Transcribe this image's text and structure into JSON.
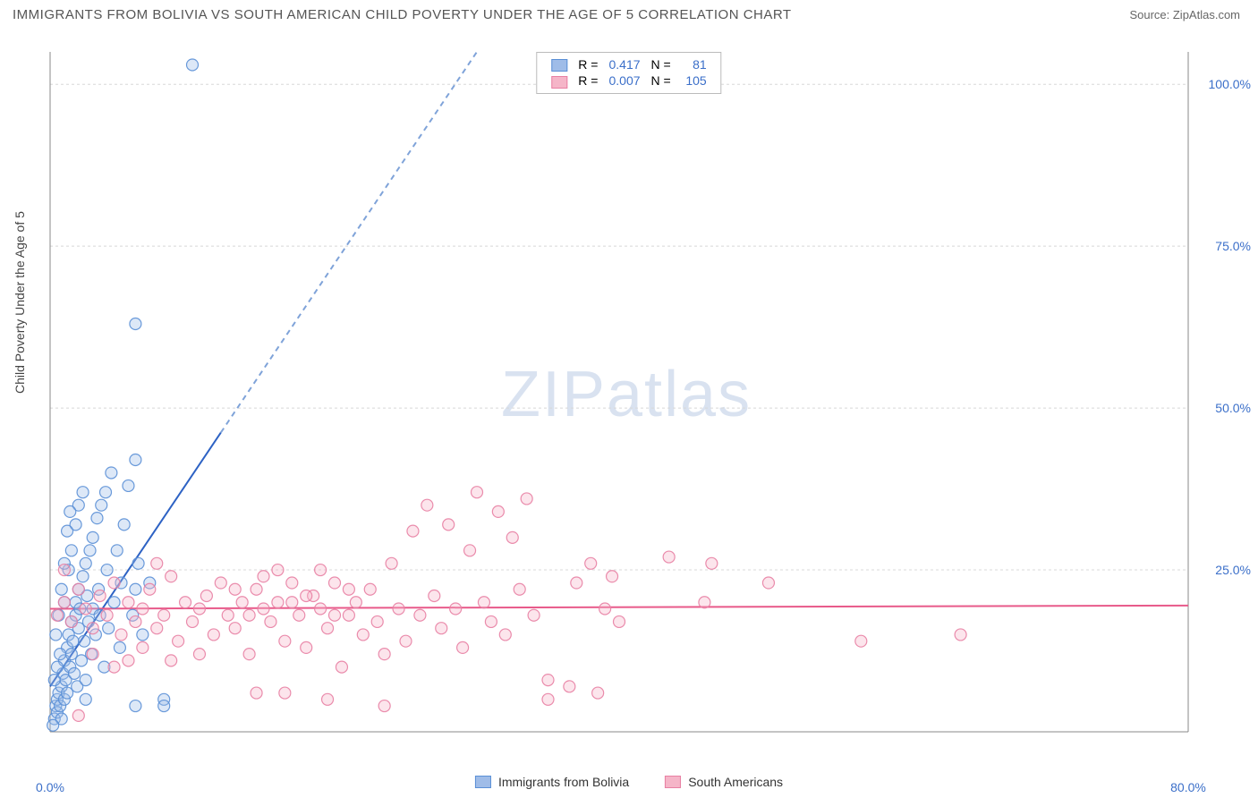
{
  "header": {
    "title": "IMMIGRANTS FROM BOLIVIA VS SOUTH AMERICAN CHILD POVERTY UNDER THE AGE OF 5 CORRELATION CHART",
    "source": "Source: ZipAtlas.com"
  },
  "ylabel": "Child Poverty Under the Age of 5",
  "watermark": {
    "zip": "ZIP",
    "atlas": "atlas"
  },
  "chart": {
    "type": "scatter",
    "plot_bg": "#ffffff",
    "grid_color": "#d8d8d8",
    "grid_dash": "3,3",
    "axis_color": "#888888",
    "xlim": [
      0,
      80
    ],
    "ylim": [
      0,
      105
    ],
    "xticks": [
      0.0,
      80.0
    ],
    "yticks": [
      25.0,
      50.0,
      75.0,
      100.0
    ],
    "xtick_labels": [
      "0.0%",
      "80.0%"
    ],
    "ytick_labels": [
      "25.0%",
      "50.0%",
      "75.0%",
      "100.0%"
    ],
    "tick_color": "#3b6fc9",
    "tick_fontsize": 14,
    "marker_radius": 6.5,
    "marker_stroke_width": 1.2,
    "series": [
      {
        "name": "Immigrants from Bolivia",
        "fill": "#9fbce8",
        "fill_opacity": 0.35,
        "stroke": "#5a8fd6",
        "stroke_opacity": 0.9,
        "r": 0.417,
        "n": 81,
        "trend": {
          "x0": 0,
          "y0": 7,
          "x1": 30,
          "y1": 105,
          "solid_until_x": 12,
          "solid_color": "#2d62c4",
          "dash_color": "#7fa3d9",
          "width": 2
        },
        "points": [
          [
            0.3,
            2
          ],
          [
            0.4,
            4
          ],
          [
            0.5,
            3
          ],
          [
            0.5,
            5
          ],
          [
            0.6,
            6
          ],
          [
            0.7,
            4
          ],
          [
            0.8,
            7
          ],
          [
            0.8,
            2
          ],
          [
            0.9,
            9
          ],
          [
            1.0,
            5
          ],
          [
            1.0,
            11
          ],
          [
            1.1,
            8
          ],
          [
            1.2,
            6
          ],
          [
            1.2,
            13
          ],
          [
            1.3,
            15
          ],
          [
            1.4,
            10
          ],
          [
            1.5,
            12
          ],
          [
            1.5,
            17
          ],
          [
            1.6,
            14
          ],
          [
            1.7,
            9
          ],
          [
            1.8,
            18
          ],
          [
            1.8,
            20
          ],
          [
            1.9,
            7
          ],
          [
            2.0,
            16
          ],
          [
            2.0,
            22
          ],
          [
            2.1,
            19
          ],
          [
            2.2,
            11
          ],
          [
            2.3,
            24
          ],
          [
            2.4,
            14
          ],
          [
            2.5,
            26
          ],
          [
            2.5,
            8
          ],
          [
            2.6,
            21
          ],
          [
            2.7,
            17
          ],
          [
            2.8,
            28
          ],
          [
            2.9,
            12
          ],
          [
            3.0,
            30
          ],
          [
            3.0,
            19
          ],
          [
            3.2,
            15
          ],
          [
            3.3,
            33
          ],
          [
            3.4,
            22
          ],
          [
            3.5,
            18
          ],
          [
            3.6,
            35
          ],
          [
            3.8,
            10
          ],
          [
            3.9,
            37
          ],
          [
            4.0,
            25
          ],
          [
            4.1,
            16
          ],
          [
            4.3,
            40
          ],
          [
            4.5,
            20
          ],
          [
            4.7,
            28
          ],
          [
            4.9,
            13
          ],
          [
            5.0,
            23
          ],
          [
            5.2,
            32
          ],
          [
            5.5,
            38
          ],
          [
            5.8,
            18
          ],
          [
            6.0,
            42
          ],
          [
            6.2,
            26
          ],
          [
            6.5,
            15
          ],
          [
            0.5,
            10
          ],
          [
            0.7,
            12
          ],
          [
            1.0,
            20
          ],
          [
            1.3,
            25
          ],
          [
            1.5,
            28
          ],
          [
            1.8,
            32
          ],
          [
            2.0,
            35
          ],
          [
            2.3,
            37
          ],
          [
            2.5,
            5
          ],
          [
            0.2,
            1
          ],
          [
            0.3,
            8
          ],
          [
            0.4,
            15
          ],
          [
            0.6,
            18
          ],
          [
            0.8,
            22
          ],
          [
            1.0,
            26
          ],
          [
            1.2,
            31
          ],
          [
            1.4,
            34
          ],
          [
            6.0,
            63
          ],
          [
            10.0,
            103
          ],
          [
            6.0,
            22
          ],
          [
            6.0,
            4
          ],
          [
            8.0,
            5
          ],
          [
            8.0,
            4
          ],
          [
            7.0,
            23
          ]
        ]
      },
      {
        "name": "South Americans",
        "fill": "#f5b5c8",
        "fill_opacity": 0.35,
        "stroke": "#e87fa3",
        "stroke_opacity": 0.9,
        "r": 0.007,
        "n": 105,
        "trend": {
          "x0": 0,
          "y0": 19,
          "x1": 80,
          "y1": 19.5,
          "solid_color": "#e85a8a",
          "width": 2
        },
        "points": [
          [
            0.5,
            18
          ],
          [
            1.0,
            20
          ],
          [
            1.5,
            17
          ],
          [
            2.0,
            22
          ],
          [
            2.5,
            19
          ],
          [
            3.0,
            16
          ],
          [
            3.5,
            21
          ],
          [
            4.0,
            18
          ],
          [
            4.5,
            23
          ],
          [
            5.0,
            15
          ],
          [
            5.5,
            20
          ],
          [
            6.0,
            17
          ],
          [
            6.5,
            19
          ],
          [
            7.0,
            22
          ],
          [
            7.5,
            16
          ],
          [
            8.0,
            18
          ],
          [
            8.5,
            24
          ],
          [
            9.0,
            14
          ],
          [
            9.5,
            20
          ],
          [
            10.0,
            17
          ],
          [
            10.5,
            19
          ],
          [
            11.0,
            21
          ],
          [
            11.5,
            15
          ],
          [
            12.0,
            23
          ],
          [
            12.5,
            18
          ],
          [
            13.0,
            16
          ],
          [
            13.5,
            20
          ],
          [
            14.0,
            12
          ],
          [
            14.5,
            22
          ],
          [
            15.0,
            19
          ],
          [
            15.5,
            17
          ],
          [
            16.0,
            25
          ],
          [
            16.5,
            14
          ],
          [
            17.0,
            20
          ],
          [
            17.5,
            18
          ],
          [
            18.0,
            13
          ],
          [
            18.5,
            21
          ],
          [
            19.0,
            19
          ],
          [
            19.5,
            16
          ],
          [
            20.0,
            23
          ],
          [
            20.5,
            10
          ],
          [
            21.0,
            18
          ],
          [
            21.5,
            20
          ],
          [
            22.0,
            15
          ],
          [
            22.5,
            22
          ],
          [
            23.0,
            17
          ],
          [
            23.5,
            12
          ],
          [
            24.0,
            26
          ],
          [
            24.5,
            19
          ],
          [
            25.0,
            14
          ],
          [
            25.5,
            31
          ],
          [
            26.0,
            18
          ],
          [
            26.5,
            35
          ],
          [
            27.0,
            21
          ],
          [
            27.5,
            16
          ],
          [
            28.0,
            32
          ],
          [
            28.5,
            19
          ],
          [
            29.0,
            13
          ],
          [
            29.5,
            28
          ],
          [
            30.0,
            37
          ],
          [
            30.5,
            20
          ],
          [
            31.0,
            17
          ],
          [
            31.5,
            34
          ],
          [
            32.0,
            15
          ],
          [
            32.5,
            30
          ],
          [
            33.0,
            22
          ],
          [
            33.5,
            36
          ],
          [
            34.0,
            18
          ],
          [
            35.0,
            5
          ],
          [
            35.0,
            8
          ],
          [
            36.5,
            7
          ],
          [
            37.0,
            23
          ],
          [
            38.0,
            26
          ],
          [
            38.5,
            6
          ],
          [
            39.0,
            19
          ],
          [
            39.5,
            24
          ],
          [
            40.0,
            17
          ],
          [
            43.5,
            27
          ],
          [
            46.0,
            20
          ],
          [
            46.5,
            26
          ],
          [
            50.5,
            23
          ],
          [
            57.0,
            14
          ],
          [
            64.0,
            15
          ],
          [
            1.0,
            25
          ],
          [
            2.0,
            2.5
          ],
          [
            3.0,
            12
          ],
          [
            4.5,
            10
          ],
          [
            5.5,
            11
          ],
          [
            6.5,
            13
          ],
          [
            7.5,
            26
          ],
          [
            8.5,
            11
          ],
          [
            10.5,
            12
          ],
          [
            14.5,
            6
          ],
          [
            16.5,
            6
          ],
          [
            19.5,
            5
          ],
          [
            23.5,
            4
          ],
          [
            13.0,
            22
          ],
          [
            14.0,
            18
          ],
          [
            15.0,
            24
          ],
          [
            16.0,
            20
          ],
          [
            17.0,
            23
          ],
          [
            18.0,
            21
          ],
          [
            19.0,
            25
          ],
          [
            20.0,
            18
          ],
          [
            21.0,
            22
          ]
        ]
      }
    ]
  },
  "legend_top": {
    "border": "#bbbbbb",
    "label_r": "R =",
    "label_n": "N =",
    "value_color": "#3b6fc9",
    "mono_color": "#555555"
  },
  "legend_bottom": {
    "items": [
      {
        "label": "Immigrants from Bolivia",
        "fill": "#9fbce8",
        "stroke": "#5a8fd6"
      },
      {
        "label": "South Americans",
        "fill": "#f5b5c8",
        "stroke": "#e87fa3"
      }
    ]
  }
}
